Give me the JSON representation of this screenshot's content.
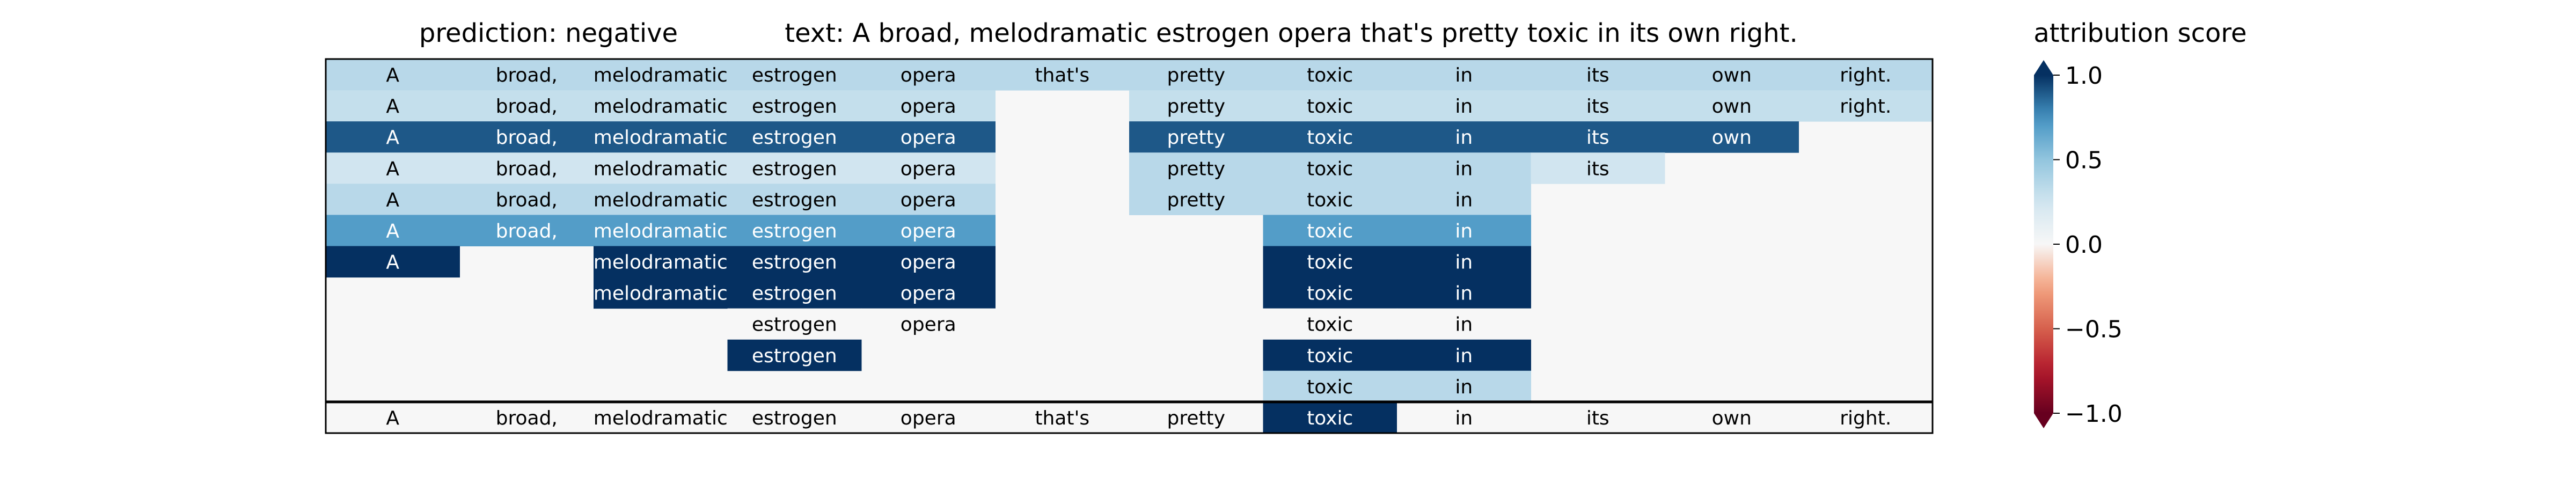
{
  "chart_data": {
    "type": "heatmap",
    "title_left": "prediction:  negative",
    "title_center": "text:  A broad, melodramatic estrogen opera that's pretty toxic in its own right.",
    "colorbar_label": "attribution score",
    "colorbar": {
      "min": -1.0,
      "max": 1.0,
      "extend": "both",
      "ticks": [
        1.0,
        0.5,
        0.0,
        -0.5,
        -1.0
      ],
      "tick_labels": [
        "1.0",
        "0.5",
        "0.0",
        "−0.5",
        "−1.0"
      ],
      "colormap": "RdBu"
    },
    "tokens": [
      "A",
      "broad,",
      "melodramatic",
      "estrogen",
      "opera",
      "that's",
      "pretty",
      "toxic",
      "in",
      "its",
      "own",
      "right."
    ],
    "rows": [
      [
        0.35,
        0.35,
        0.35,
        0.35,
        0.35,
        0.35,
        0.35,
        0.35,
        0.35,
        0.35,
        0.35,
        0.35
      ],
      [
        0.3,
        0.3,
        0.3,
        0.3,
        0.3,
        null,
        0.3,
        0.3,
        0.3,
        0.3,
        0.3,
        0.3
      ],
      [
        0.9,
        0.9,
        0.9,
        0.9,
        0.9,
        null,
        0.9,
        0.9,
        0.9,
        0.9,
        0.9,
        null
      ],
      [
        0.25,
        0.25,
        0.25,
        0.25,
        0.25,
        null,
        0.35,
        0.35,
        0.35,
        0.25,
        null,
        null
      ],
      [
        0.35,
        0.35,
        0.35,
        0.35,
        0.35,
        null,
        0.35,
        0.35,
        0.35,
        null,
        null,
        null
      ],
      [
        0.7,
        0.7,
        0.7,
        0.7,
        0.7,
        null,
        null,
        0.7,
        0.7,
        null,
        null,
        null
      ],
      [
        1.0,
        null,
        1.0,
        1.0,
        1.0,
        null,
        null,
        1.0,
        1.0,
        null,
        null,
        null
      ],
      [
        null,
        null,
        1.0,
        1.0,
        1.0,
        null,
        null,
        1.0,
        1.0,
        null,
        null,
        null
      ],
      [
        null,
        null,
        null,
        0.0,
        0.0,
        null,
        null,
        0.0,
        0.0,
        null,
        null,
        null
      ],
      [
        null,
        null,
        null,
        1.0,
        null,
        null,
        null,
        1.0,
        1.0,
        null,
        null,
        null
      ],
      [
        null,
        null,
        null,
        null,
        null,
        null,
        null,
        0.35,
        0.35,
        null,
        null,
        null
      ]
    ],
    "bottom_row": [
      0.0,
      0.0,
      0.0,
      0.0,
      0.0,
      0.0,
      0.0,
      1.0,
      0.0,
      0.0,
      0.0,
      0.0
    ]
  }
}
